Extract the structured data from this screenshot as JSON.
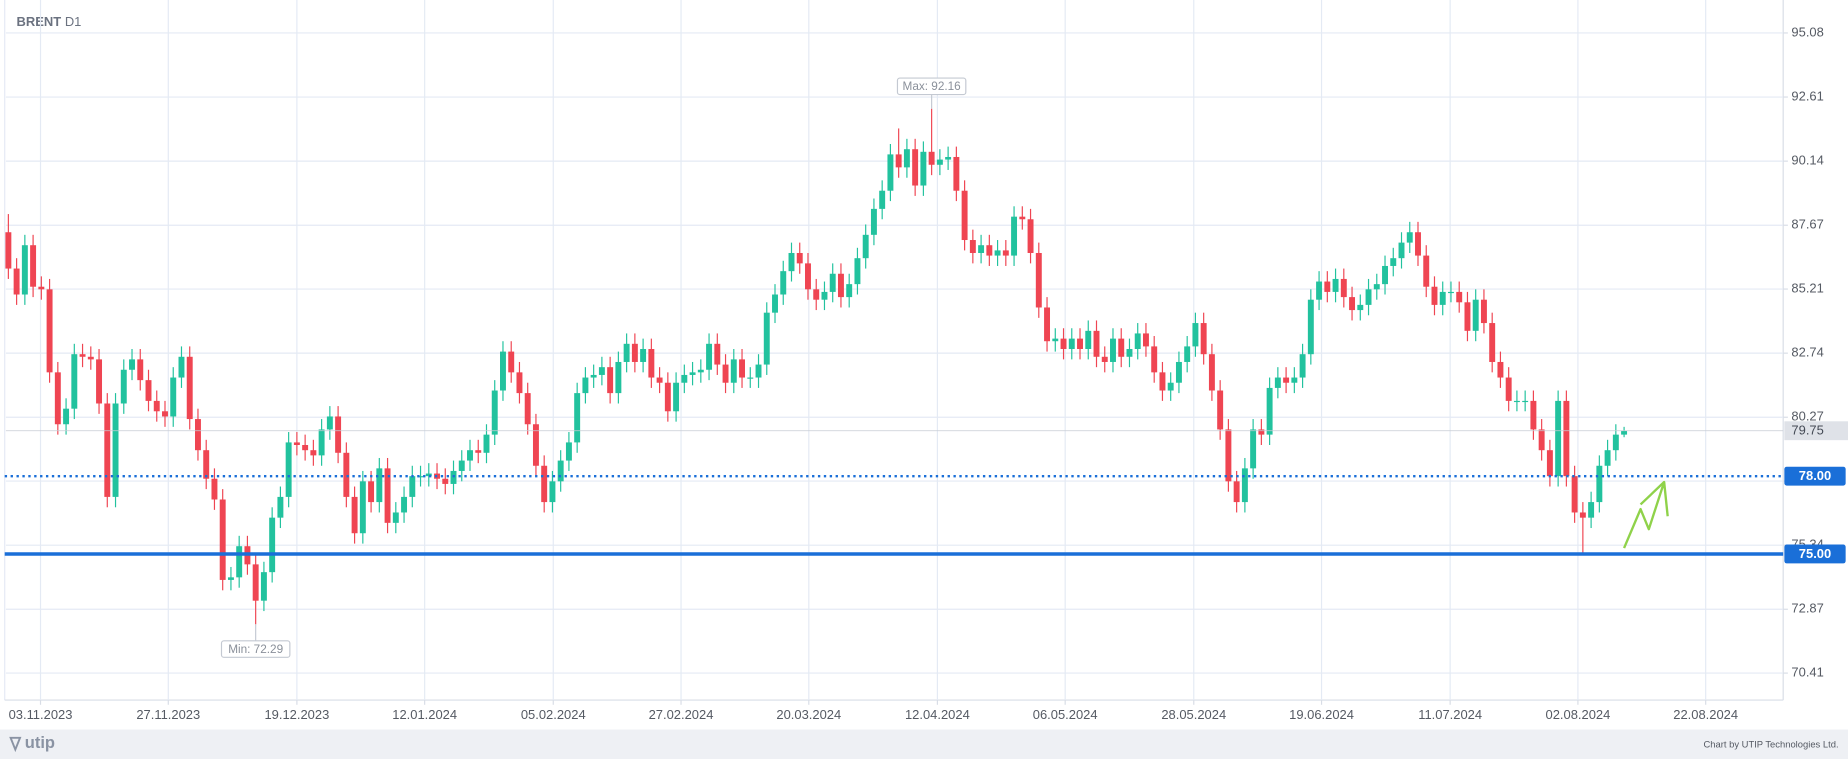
{
  "chart_data": {
    "type": "candlestick",
    "title": "BRENT",
    "timeframe": "D1",
    "up_color": "#22c29e",
    "down_color": "#ef4552",
    "open": [
      87.4,
      86.0,
      85.0,
      86.9,
      85.3,
      85.2,
      82.0,
      80.0,
      80.6,
      82.7,
      82.6,
      82.5,
      80.8,
      77.2,
      80.8,
      82.1,
      82.5,
      81.7,
      80.9,
      80.5,
      80.3,
      81.8,
      82.6,
      80.2,
      79.0,
      77.9,
      77.1,
      74.0,
      74.1,
      75.3,
      74.6,
      73.2,
      74.3,
      76.4,
      77.2,
      79.3,
      79.2,
      79.0,
      78.8,
      79.8,
      80.3,
      78.9,
      77.2,
      75.8,
      77.8,
      77.0,
      78.3,
      76.2,
      76.6,
      77.2,
      78.0,
      78.0,
      78.1,
      77.9,
      77.7,
      78.2,
      78.6,
      79.0,
      78.9,
      79.6,
      81.3,
      82.8,
      82.0,
      81.2,
      80.0,
      78.4,
      77.0,
      77.8,
      78.6,
      79.3,
      81.2,
      81.8,
      81.9,
      82.2,
      81.2,
      82.4,
      83.1,
      82.4,
      82.9,
      81.8,
      81.6,
      80.5,
      81.6,
      81.9,
      82.0,
      82.1,
      83.1,
      82.3,
      81.6,
      82.5,
      81.8,
      81.8,
      82.3,
      84.3,
      85.0,
      85.9,
      86.6,
      86.2,
      85.2,
      84.8,
      85.1,
      85.8,
      84.9,
      85.4,
      86.4,
      87.3,
      88.3,
      89.0,
      90.4,
      89.9,
      90.6,
      89.2,
      90.5,
      90.0,
      90.2,
      90.3,
      89.0,
      87.1,
      86.6,
      86.9,
      86.5,
      86.7,
      86.5,
      88.0,
      87.9,
      86.6,
      84.5,
      83.2,
      83.3,
      82.9,
      83.3,
      82.9,
      83.6,
      82.6,
      82.4,
      83.3,
      82.6,
      82.9,
      83.5,
      83.0,
      82.0,
      81.3,
      81.6,
      82.4,
      83.0,
      83.9,
      82.7,
      81.3,
      79.8,
      77.8,
      77.0,
      78.3,
      79.8,
      79.6,
      81.4,
      81.8,
      81.6,
      81.8,
      82.7,
      84.8,
      85.5,
      85.1,
      85.6,
      84.9,
      84.4,
      84.6,
      85.2,
      85.4,
      86.1,
      86.4,
      87.0,
      87.4,
      86.5,
      85.3,
      84.6,
      85.1,
      85.1,
      84.7,
      83.6,
      84.8,
      83.9,
      82.4,
      81.8,
      80.9,
      80.9,
      80.9,
      79.8,
      79.0,
      78.0,
      80.9,
      78.0,
      76.6,
      76.4,
      77.0,
      78.4,
      79.0,
      79.6
    ],
    "high": [
      88.1,
      86.4,
      87.3,
      87.3,
      85.7,
      85.6,
      82.4,
      81.0,
      83.1,
      83.1,
      83.0,
      82.9,
      81.2,
      81.2,
      82.5,
      82.9,
      82.9,
      82.1,
      81.3,
      80.9,
      82.2,
      83.0,
      83.0,
      80.6,
      79.4,
      78.3,
      77.5,
      74.5,
      75.7,
      75.7,
      75.0,
      74.7,
      76.8,
      77.6,
      79.7,
      79.7,
      79.6,
      79.4,
      80.2,
      80.7,
      80.7,
      79.3,
      77.6,
      78.2,
      78.2,
      78.7,
      78.7,
      77.0,
      77.6,
      78.4,
      78.4,
      78.5,
      78.5,
      78.3,
      78.6,
      79.0,
      79.4,
      79.4,
      80.0,
      81.7,
      83.2,
      83.2,
      82.4,
      81.6,
      80.4,
      78.8,
      78.2,
      79.0,
      79.7,
      81.6,
      82.2,
      82.3,
      82.6,
      82.6,
      82.8,
      83.5,
      83.5,
      83.3,
      83.3,
      82.2,
      82.0,
      82.0,
      82.3,
      82.4,
      82.5,
      83.5,
      83.5,
      82.7,
      82.9,
      82.9,
      82.2,
      82.7,
      84.7,
      85.4,
      86.3,
      87.0,
      87.0,
      86.6,
      85.6,
      85.5,
      86.2,
      86.2,
      85.8,
      86.8,
      87.7,
      88.7,
      89.4,
      90.8,
      91.4,
      91.0,
      91.0,
      90.9,
      92.16,
      90.6,
      90.7,
      90.7,
      89.4,
      87.5,
      87.3,
      87.3,
      87.1,
      87.1,
      88.4,
      88.4,
      88.3,
      87.0,
      84.9,
      83.7,
      83.7,
      83.7,
      83.7,
      84.0,
      84.0,
      83.0,
      83.7,
      83.7,
      83.3,
      83.9,
      83.9,
      83.4,
      82.4,
      82.0,
      82.8,
      83.4,
      84.3,
      84.3,
      83.1,
      81.7,
      80.2,
      78.2,
      78.7,
      80.2,
      80.2,
      81.8,
      82.2,
      82.2,
      82.2,
      83.1,
      85.2,
      85.9,
      85.9,
      86.0,
      86.0,
      85.3,
      85.0,
      85.6,
      85.8,
      86.5,
      86.8,
      87.4,
      87.8,
      87.8,
      86.9,
      85.7,
      85.5,
      85.5,
      85.5,
      85.1,
      85.2,
      85.2,
      84.3,
      82.8,
      82.2,
      81.3,
      81.3,
      81.3,
      80.2,
      79.4,
      81.3,
      81.3,
      78.4,
      77.0,
      77.4,
      78.8,
      79.4,
      80.0,
      79.9
    ],
    "low": [
      85.6,
      84.6,
      84.6,
      84.9,
      84.8,
      81.6,
      79.6,
      79.6,
      80.2,
      82.2,
      82.1,
      80.4,
      76.8,
      76.8,
      80.4,
      81.7,
      81.3,
      80.5,
      80.1,
      79.9,
      79.9,
      81.4,
      79.8,
      78.6,
      77.5,
      76.7,
      73.6,
      73.6,
      73.7,
      74.2,
      72.29,
      72.8,
      73.9,
      76.0,
      76.8,
      78.8,
      78.6,
      78.4,
      78.4,
      79.4,
      78.5,
      76.8,
      75.4,
      75.4,
      76.6,
      76.6,
      75.8,
      75.8,
      76.2,
      76.8,
      77.6,
      77.6,
      77.5,
      77.3,
      77.3,
      77.8,
      78.2,
      78.5,
      78.5,
      79.2,
      80.9,
      81.6,
      80.8,
      79.6,
      78.0,
      76.6,
      76.6,
      77.4,
      78.2,
      78.9,
      80.8,
      81.4,
      81.5,
      80.8,
      80.8,
      82.0,
      82.0,
      82.0,
      81.4,
      81.2,
      80.1,
      80.1,
      81.2,
      81.5,
      81.6,
      81.7,
      81.9,
      81.2,
      81.2,
      81.4,
      81.4,
      81.4,
      81.9,
      83.9,
      84.6,
      85.5,
      85.8,
      84.8,
      84.4,
      84.4,
      84.7,
      84.5,
      84.5,
      85.0,
      86.0,
      86.9,
      87.9,
      88.6,
      89.5,
      89.5,
      88.8,
      88.8,
      89.6,
      89.6,
      89.8,
      88.6,
      86.7,
      86.2,
      86.2,
      86.1,
      86.1,
      86.1,
      86.1,
      87.5,
      86.2,
      84.1,
      82.8,
      82.8,
      82.5,
      82.5,
      82.5,
      82.5,
      82.2,
      82.0,
      82.0,
      82.2,
      82.2,
      82.5,
      82.6,
      81.6,
      80.9,
      80.9,
      81.2,
      82.0,
      82.6,
      82.3,
      80.9,
      79.4,
      77.4,
      76.6,
      76.6,
      77.9,
      79.2,
      79.2,
      81.0,
      81.2,
      81.2,
      81.4,
      82.3,
      84.4,
      84.7,
      84.7,
      84.5,
      84.0,
      84.0,
      84.2,
      84.8,
      85.0,
      85.7,
      86.0,
      86.6,
      86.1,
      84.9,
      84.2,
      84.2,
      84.7,
      84.3,
      83.2,
      83.2,
      83.5,
      82.0,
      81.4,
      80.5,
      80.5,
      80.5,
      79.4,
      78.6,
      77.6,
      77.6,
      77.6,
      76.2,
      75.0,
      76.0,
      76.6,
      78.0,
      78.6,
      79.5
    ],
    "close": [
      86.0,
      85.0,
      86.9,
      85.3,
      85.2,
      82.0,
      80.0,
      80.6,
      82.7,
      82.6,
      82.5,
      80.8,
      77.2,
      80.8,
      82.1,
      82.5,
      81.7,
      80.9,
      80.5,
      80.3,
      81.8,
      82.6,
      80.2,
      79.0,
      77.9,
      77.1,
      74.0,
      74.1,
      75.3,
      74.6,
      73.2,
      74.3,
      76.4,
      77.2,
      79.3,
      79.2,
      79.0,
      78.8,
      79.8,
      80.3,
      78.9,
      77.2,
      75.8,
      77.8,
      77.0,
      78.3,
      76.2,
      76.6,
      77.2,
      78.0,
      78.0,
      78.1,
      77.9,
      77.7,
      78.2,
      78.6,
      79.0,
      78.9,
      79.6,
      81.3,
      82.8,
      82.0,
      81.2,
      80.0,
      78.4,
      77.0,
      77.8,
      78.6,
      79.3,
      81.2,
      81.8,
      81.9,
      82.2,
      81.2,
      82.4,
      83.1,
      82.4,
      82.9,
      81.8,
      81.6,
      80.5,
      81.6,
      81.9,
      82.0,
      82.1,
      83.1,
      82.3,
      81.6,
      82.5,
      81.8,
      81.8,
      82.3,
      84.3,
      85.0,
      85.9,
      86.6,
      86.2,
      85.2,
      84.8,
      85.1,
      85.8,
      84.9,
      85.4,
      86.4,
      87.3,
      88.3,
      89.0,
      90.4,
      89.9,
      90.6,
      89.2,
      90.5,
      90.0,
      90.2,
      90.3,
      89.0,
      87.1,
      86.6,
      86.9,
      86.5,
      86.7,
      86.5,
      88.0,
      87.9,
      86.6,
      84.5,
      83.2,
      83.3,
      82.9,
      83.3,
      82.9,
      83.6,
      82.6,
      82.4,
      83.3,
      82.6,
      82.9,
      83.5,
      83.0,
      82.0,
      81.3,
      81.6,
      82.4,
      83.0,
      83.9,
      82.7,
      81.3,
      79.8,
      77.8,
      77.0,
      78.3,
      79.8,
      79.6,
      81.4,
      81.8,
      81.6,
      81.8,
      82.7,
      84.8,
      85.5,
      85.1,
      85.6,
      84.9,
      84.4,
      84.6,
      85.2,
      85.4,
      86.1,
      86.4,
      87.0,
      87.4,
      86.5,
      85.3,
      84.6,
      85.1,
      85.1,
      84.7,
      83.6,
      84.8,
      83.9,
      82.4,
      81.8,
      80.9,
      80.9,
      80.9,
      79.8,
      79.0,
      78.0,
      80.9,
      78.0,
      76.6,
      76.4,
      77.0,
      78.4,
      79.0,
      79.6,
      79.75
    ],
    "xlim": [
      -0.3,
      215.3
    ],
    "xticks": [
      {
        "value": 3.9,
        "label": "03.11.2023"
      },
      {
        "value": 19.4,
        "label": "27.11.2023"
      },
      {
        "value": 35.0,
        "label": "19.12.2023"
      },
      {
        "value": 50.5,
        "label": "12.01.2024"
      },
      {
        "value": 66.1,
        "label": "05.02.2024"
      },
      {
        "value": 81.6,
        "label": "27.02.2024"
      },
      {
        "value": 97.1,
        "label": "20.03.2024"
      },
      {
        "value": 112.7,
        "label": "12.04.2024"
      },
      {
        "value": 128.2,
        "label": "06.05.2024"
      },
      {
        "value": 143.8,
        "label": "28.05.2024"
      },
      {
        "value": 159.3,
        "label": "19.06.2024"
      },
      {
        "value": 174.9,
        "label": "11.07.2024"
      },
      {
        "value": 190.4,
        "label": "02.08.2024"
      },
      {
        "value": 205.9,
        "label": "22.08.2024"
      }
    ],
    "ylim": [
      69.37,
      96.35
    ],
    "yticks": [
      70.41,
      72.87,
      75.34,
      77.81,
      80.27,
      82.74,
      85.21,
      87.67,
      90.14,
      92.61,
      95.08
    ],
    "grid": true,
    "levels": [
      {
        "value": 78,
        "label": "78.00",
        "style": "dotted",
        "color": "#1a6fd8"
      },
      {
        "value": 75,
        "label": "75.00",
        "style": "solid",
        "color": "#1a6fd8"
      }
    ],
    "last_price": {
      "value": 79.75,
      "label": "79.75"
    },
    "annotations": [
      {
        "label": "Max: 92.16",
        "value": 92.16,
        "index": 112,
        "side": "above"
      },
      {
        "label": "Min: 72.29",
        "value": 72.29,
        "index": 30,
        "side": "below"
      }
    ]
  },
  "footer": {
    "logo": "utip",
    "credit": "Chart by UTIP Technologies Ltd."
  }
}
